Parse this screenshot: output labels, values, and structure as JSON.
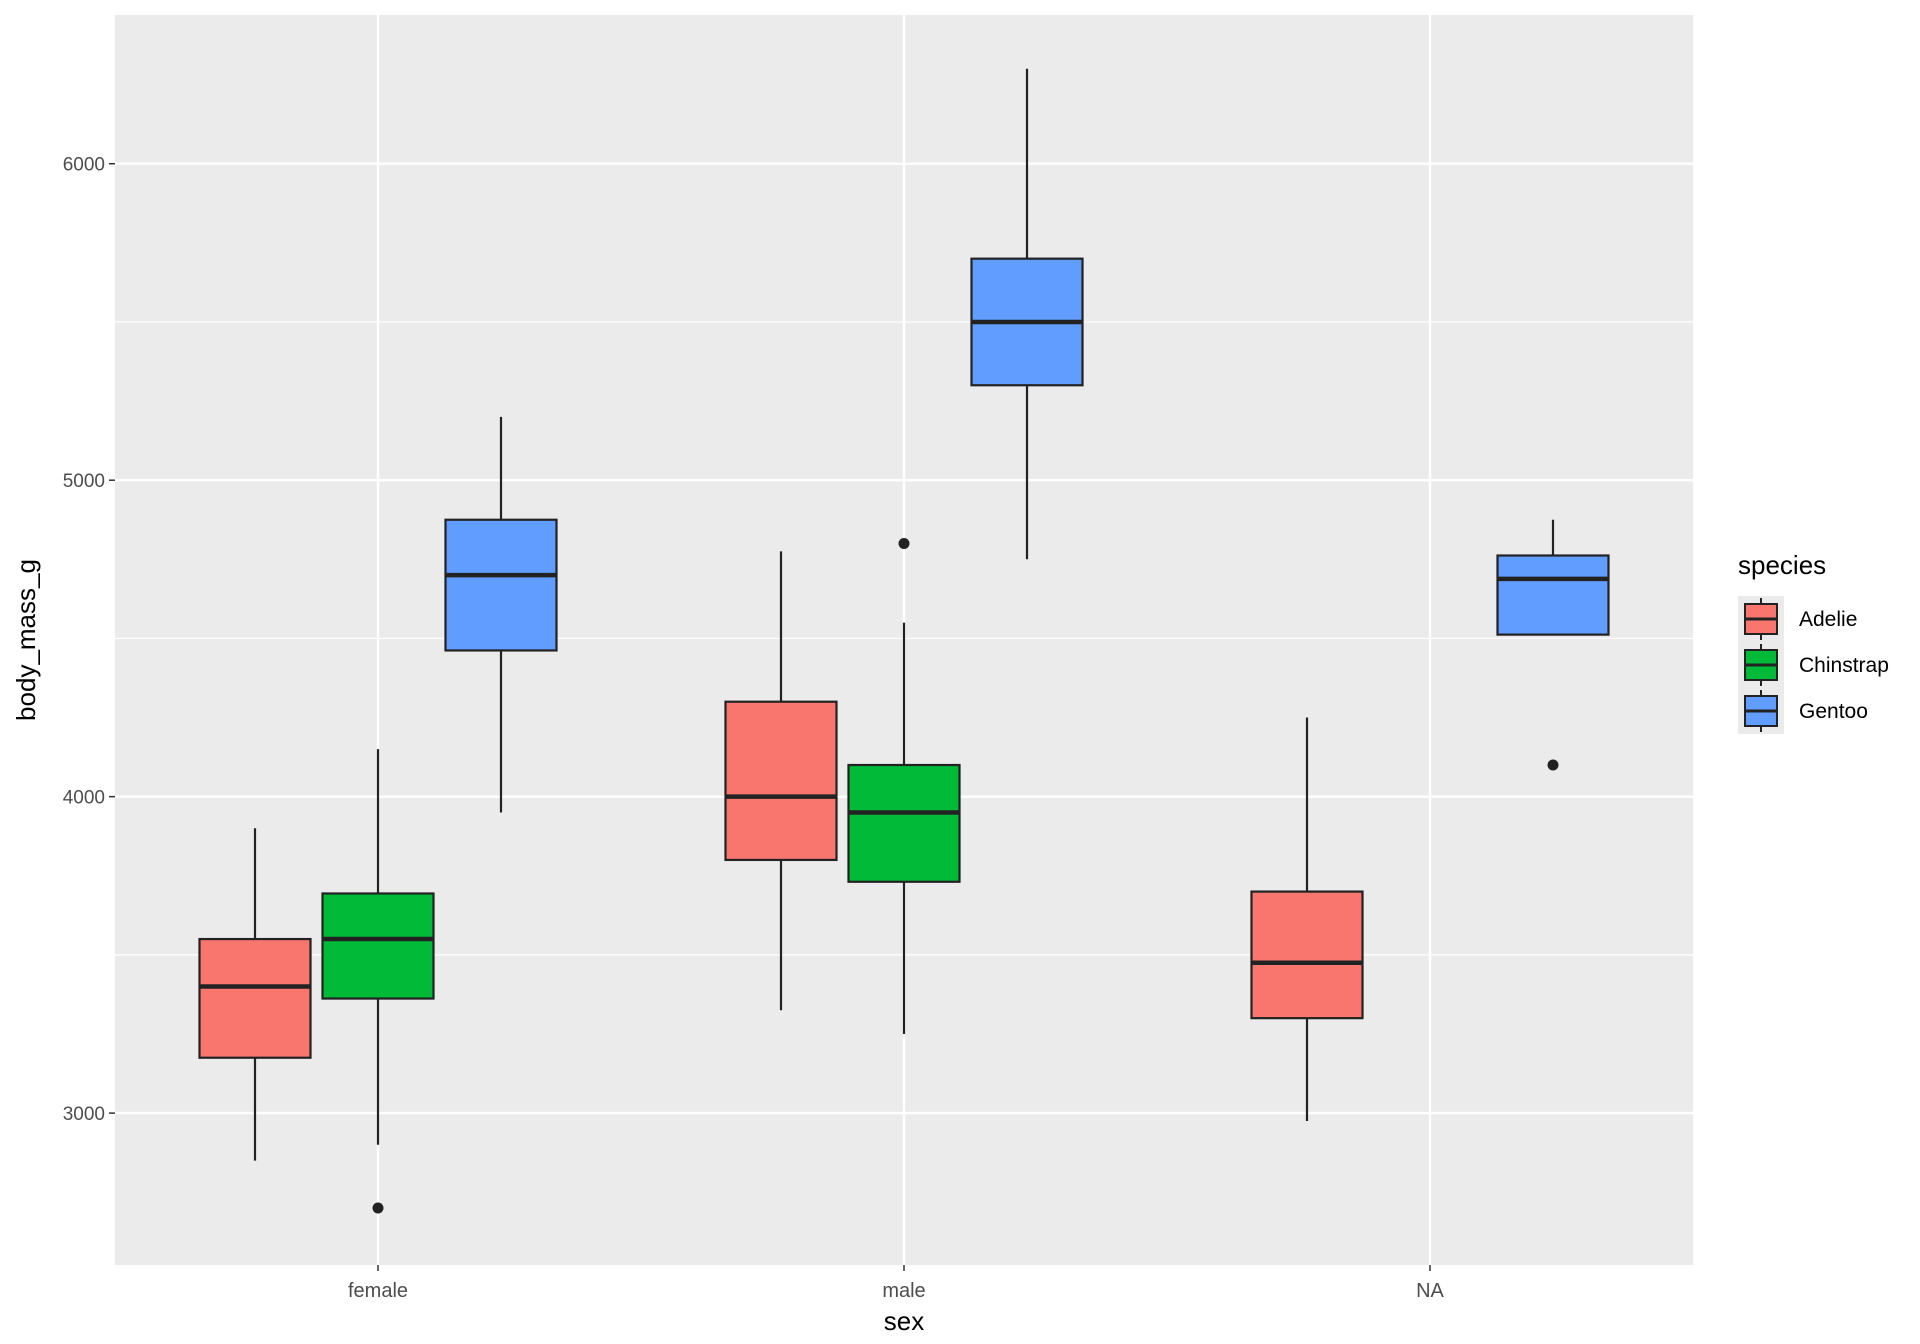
{
  "chart_data": {
    "type": "boxplot",
    "xlabel": "sex",
    "ylabel": "body_mass_g",
    "categories": [
      "female",
      "male",
      "NA"
    ],
    "ylim": [
      2520,
      6470
    ],
    "y_ticks": [
      3000,
      4000,
      5000,
      6000
    ],
    "y_tick_labels": [
      "3000",
      "4000",
      "5000",
      "6000"
    ],
    "grid": true,
    "legend": {
      "title": "species",
      "position": "right",
      "entries": [
        {
          "name": "Adelie",
          "color": "#F8766D"
        },
        {
          "name": "Chinstrap",
          "color": "#00BA38"
        },
        {
          "name": "Gentoo",
          "color": "#619CFF"
        }
      ]
    },
    "boxes": [
      {
        "category": "female",
        "species": "Adelie",
        "color": "#F8766D",
        "whisker_low": 2850,
        "q1": 3175,
        "median": 3400,
        "q3": 3550,
        "whisker_high": 3900,
        "outliers": []
      },
      {
        "category": "female",
        "species": "Chinstrap",
        "color": "#00BA38",
        "whisker_low": 2900,
        "q1": 3362,
        "median": 3550,
        "q3": 3694,
        "whisker_high": 4150,
        "outliers": [
          2700
        ]
      },
      {
        "category": "female",
        "species": "Gentoo",
        "color": "#619CFF",
        "whisker_low": 3950,
        "q1": 4462,
        "median": 4700,
        "q3": 4875,
        "whisker_high": 5200,
        "outliers": []
      },
      {
        "category": "male",
        "species": "Adelie",
        "color": "#F8766D",
        "whisker_low": 3325,
        "q1": 3800,
        "median": 4000,
        "q3": 4300,
        "whisker_high": 4775,
        "outliers": []
      },
      {
        "category": "male",
        "species": "Chinstrap",
        "color": "#00BA38",
        "whisker_low": 3250,
        "q1": 3731,
        "median": 3950,
        "q3": 4100,
        "whisker_high": 4550,
        "outliers": [
          4800
        ]
      },
      {
        "category": "male",
        "species": "Gentoo",
        "color": "#619CFF",
        "whisker_low": 4750,
        "q1": 5300,
        "median": 5500,
        "q3": 5700,
        "whisker_high": 6300,
        "outliers": []
      },
      {
        "category": "NA",
        "species": "Adelie",
        "color": "#F8766D",
        "whisker_low": 2975,
        "q1": 3300,
        "median": 3475,
        "q3": 3700,
        "whisker_high": 4250,
        "outliers": []
      },
      {
        "category": "NA",
        "species": "Gentoo",
        "color": "#619CFF",
        "whisker_low": 4512,
        "q1": 4512,
        "median": 4688,
        "q3": 4762,
        "whisker_high": 4875,
        "outliers": [
          4100
        ]
      }
    ]
  }
}
